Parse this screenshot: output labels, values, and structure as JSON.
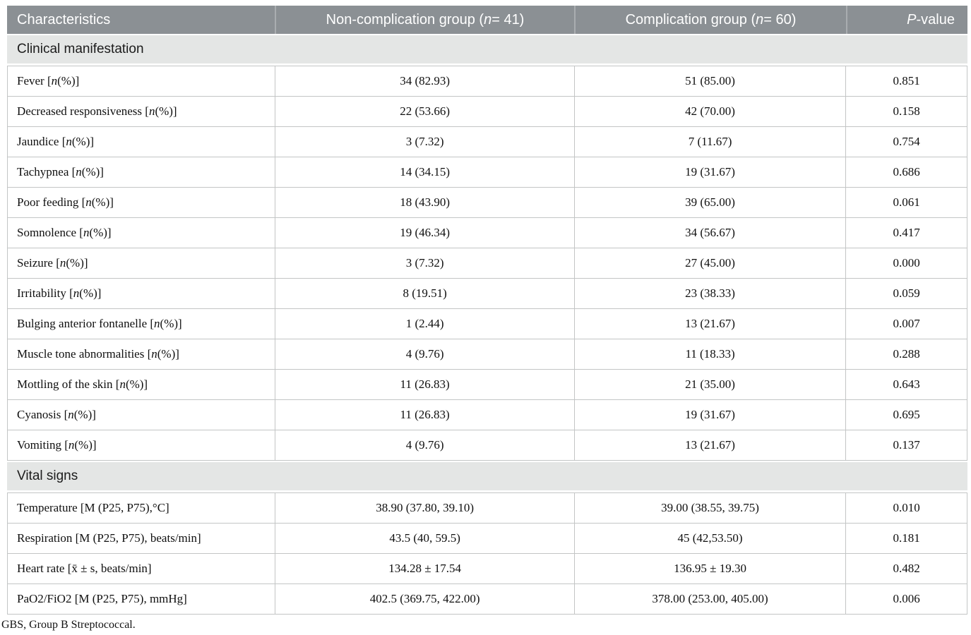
{
  "colors": {
    "header_bg": "#8b9094",
    "header_sep": "#a9adb0",
    "header_text": "#ffffff",
    "section_bg": "#e4e6e5",
    "border": "#c3c5c5"
  },
  "table": {
    "header": {
      "characteristics_html": "Characteristics",
      "group1_html": "Non-complication group (<i>n</i> = 41)",
      "group2_html": "Complication group (<i>n</i> = 60)",
      "pvalue_html": "<i>P</i>-value"
    },
    "sections": [
      {
        "title": "Clinical manifestation",
        "rows": [
          {
            "label_html": "Fever [<i>n</i> (%)]",
            "group1": "34 (82.93)",
            "group2": "51 (85.00)",
            "p": "0.851"
          },
          {
            "label_html": "Decreased responsiveness [<i>n</i> (%)]",
            "group1": "22 (53.66)",
            "group2": "42 (70.00)",
            "p": "0.158"
          },
          {
            "label_html": "Jaundice [<i>n</i> (%)]",
            "group1": "3 (7.32)",
            "group2": "7 (11.67)",
            "p": "0.754"
          },
          {
            "label_html": "Tachypnea [<i>n</i> (%)]",
            "group1": "14 (34.15)",
            "group2": "19 (31.67)",
            "p": "0.686"
          },
          {
            "label_html": "Poor feeding [<i>n</i> (%)]",
            "group1": "18 (43.90)",
            "group2": "39 (65.00)",
            "p": "0.061"
          },
          {
            "label_html": "Somnolence [<i>n</i> (%)]",
            "group1": "19 (46.34)",
            "group2": "34 (56.67)",
            "p": "0.417"
          },
          {
            "label_html": "Seizure [<i>n</i> (%)]",
            "group1": "3 (7.32)",
            "group2": "27 (45.00)",
            "p": "0.000"
          },
          {
            "label_html": "Irritability [<i>n</i> (%)]",
            "group1": "8 (19.51)",
            "group2": "23 (38.33)",
            "p": "0.059"
          },
          {
            "label_html": "Bulging anterior fontanelle [<i>n</i> (%)]",
            "group1": "1 (2.44)",
            "group2": "13 (21.67)",
            "p": "0.007"
          },
          {
            "label_html": "Muscle tone abnormalities [<i>n</i> (%)]",
            "group1": "4 (9.76)",
            "group2": "11 (18.33)",
            "p": "0.288"
          },
          {
            "label_html": "Mottling of the skin [<i>n</i> (%)]",
            "group1": "11 (26.83)",
            "group2": "21 (35.00)",
            "p": "0.643"
          },
          {
            "label_html": "Cyanosis [<i>n</i> (%)]",
            "group1": "11 (26.83)",
            "group2": "19 (31.67)",
            "p": "0.695"
          },
          {
            "label_html": "Vomiting [<i>n</i> (%)]",
            "group1": "4 (9.76)",
            "group2": "13 (21.67)",
            "p": "0.137"
          }
        ]
      },
      {
        "title": "Vital signs",
        "rows": [
          {
            "label_html": "Temperature [M (P25, P75),°C]",
            "group1": "38.90 (37.80, 39.10)",
            "group2": "39.00 (38.55, 39.75)",
            "p": "0.010"
          },
          {
            "label_html": "Respiration [M (P25, P75), beats/min]",
            "group1": "43.5 (40, 59.5)",
            "group2": "45 (42,53.50)",
            "p": "0.181"
          },
          {
            "label_html": "Heart rate [x̄ ± s, beats/min]",
            "group1": "134.28 ± 17.54",
            "group2": "136.95 ± 19.30",
            "p": "0.482"
          },
          {
            "label_html": "PaO2/FiO2 [M (P25, P75), mmHg]",
            "group1": "402.5 (369.75, 422.00)",
            "group2": "378.00 (253.00, 405.00)",
            "p": "0.006"
          }
        ]
      }
    ]
  },
  "footnote": "GBS, Group B Streptococcal."
}
